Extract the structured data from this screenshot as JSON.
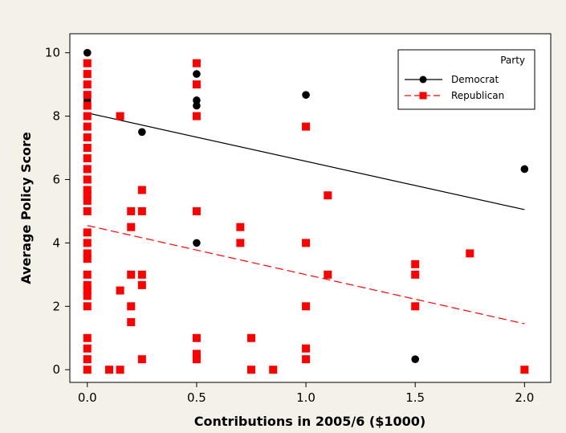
{
  "chart_data": {
    "type": "scatter",
    "title": "",
    "xlabel": "Contributions in 2005/6 ($1000)",
    "ylabel": "Average Policy Score",
    "xlim": [
      -0.08,
      2.12
    ],
    "ylim": [
      -0.4,
      10.6
    ],
    "x_ticks": [
      0.0,
      0.5,
      1.0,
      1.5,
      2.0
    ],
    "x_tick_labels": [
      "0.0",
      "0.5",
      "1.0",
      "1.5",
      "2.0"
    ],
    "y_ticks": [
      0,
      2,
      4,
      6,
      8,
      10
    ],
    "y_tick_labels": [
      "0",
      "2",
      "4",
      "6",
      "8",
      "10"
    ],
    "grid": false,
    "legend": {
      "title": "Party",
      "placement": "top-right"
    },
    "series": [
      {
        "name": "Democrat",
        "color": "#000000",
        "marker": "circle",
        "line_style": "solid",
        "points": [
          [
            0,
            10.0
          ],
          [
            0,
            8.67
          ],
          [
            0,
            8.5
          ],
          [
            0,
            8.33
          ],
          [
            0,
            7.67
          ],
          [
            0.25,
            7.5
          ],
          [
            0.5,
            9.33
          ],
          [
            0.5,
            8.5
          ],
          [
            0.5,
            8.33
          ],
          [
            0.5,
            4.0
          ],
          [
            1.0,
            8.67
          ],
          [
            1.5,
            0.33
          ],
          [
            2.0,
            6.33
          ]
        ],
        "fit_line": [
          [
            0,
            8.1
          ],
          [
            2.0,
            5.05
          ]
        ]
      },
      {
        "name": "Republican",
        "color": "#ff0000",
        "marker": "square",
        "line_style": "dashed",
        "points": [
          [
            0,
            9.67
          ],
          [
            0,
            9.33
          ],
          [
            0,
            9.0
          ],
          [
            0,
            8.67
          ],
          [
            0,
            8.33
          ],
          [
            0,
            8.0
          ],
          [
            0,
            7.67
          ],
          [
            0,
            7.33
          ],
          [
            0,
            7.0
          ],
          [
            0,
            6.67
          ],
          [
            0,
            6.33
          ],
          [
            0,
            6.0
          ],
          [
            0,
            5.67
          ],
          [
            0,
            5.5
          ],
          [
            0,
            5.33
          ],
          [
            0,
            5.0
          ],
          [
            0,
            4.33
          ],
          [
            0,
            4.0
          ],
          [
            0,
            3.67
          ],
          [
            0,
            3.5
          ],
          [
            0,
            3.0
          ],
          [
            0,
            2.67
          ],
          [
            0,
            2.5
          ],
          [
            0,
            2.33
          ],
          [
            0,
            2.0
          ],
          [
            0,
            1.0
          ],
          [
            0,
            0.67
          ],
          [
            0,
            0.33
          ],
          [
            0,
            0.0
          ],
          [
            0.1,
            0.0
          ],
          [
            0.15,
            8.0
          ],
          [
            0.15,
            2.5
          ],
          [
            0.15,
            0.0
          ],
          [
            0.2,
            5.0
          ],
          [
            0.2,
            4.5
          ],
          [
            0.2,
            3.0
          ],
          [
            0.2,
            2.0
          ],
          [
            0.2,
            1.5
          ],
          [
            0.25,
            5.67
          ],
          [
            0.25,
            5.0
          ],
          [
            0.25,
            3.0
          ],
          [
            0.25,
            2.67
          ],
          [
            0.25,
            0.33
          ],
          [
            0.5,
            9.67
          ],
          [
            0.5,
            9.0
          ],
          [
            0.5,
            8.0
          ],
          [
            0.5,
            5.0
          ],
          [
            0.5,
            1.0
          ],
          [
            0.5,
            0.5
          ],
          [
            0.5,
            0.33
          ],
          [
            0.7,
            4.5
          ],
          [
            0.7,
            4.0
          ],
          [
            0.75,
            1.0
          ],
          [
            0.75,
            0.0
          ],
          [
            0.85,
            0.0
          ],
          [
            1.0,
            7.67
          ],
          [
            1.0,
            4.0
          ],
          [
            1.0,
            2.0
          ],
          [
            1.0,
            0.67
          ],
          [
            1.0,
            0.33
          ],
          [
            1.1,
            5.5
          ],
          [
            1.1,
            3.0
          ],
          [
            1.5,
            3.33
          ],
          [
            1.5,
            3.0
          ],
          [
            1.5,
            2.0
          ],
          [
            1.75,
            3.67
          ],
          [
            2.0,
            0.0
          ]
        ],
        "fit_line": [
          [
            0,
            4.55
          ],
          [
            2.0,
            1.45
          ]
        ]
      }
    ]
  }
}
